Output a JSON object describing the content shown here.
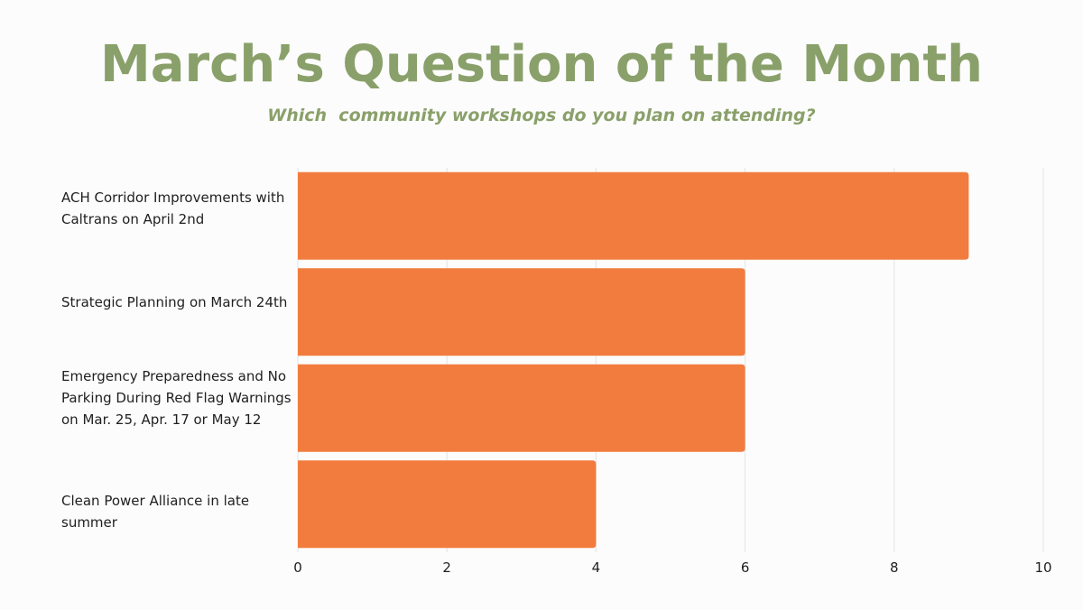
{
  "title": "March’s Question of the Month",
  "subtitle": "Which  community workshops do you plan on attending?",
  "colors": {
    "title": "#8aa06a",
    "bar": "#f27c3e",
    "grid": "#e3e3e3",
    "background": "#fcfcfc"
  },
  "chart_data": {
    "type": "bar",
    "orientation": "horizontal",
    "categories": [
      "ACH Corridor Improvements with Caltrans on April 2nd",
      "Strategic Planning on March 24th",
      "Emergency Preparedness and No Parking During Red Flag Warnings on Mar. 25, Apr. 17 or May 12",
      "Clean Power Alliance in late summer"
    ],
    "values": [
      9,
      6,
      6,
      4
    ],
    "xlim": [
      0,
      10
    ],
    "xticks": [
      "0",
      "2",
      "4",
      "6",
      "8",
      "10"
    ],
    "xlabel": "",
    "ylabel": "",
    "grid": true,
    "legend": "none"
  }
}
